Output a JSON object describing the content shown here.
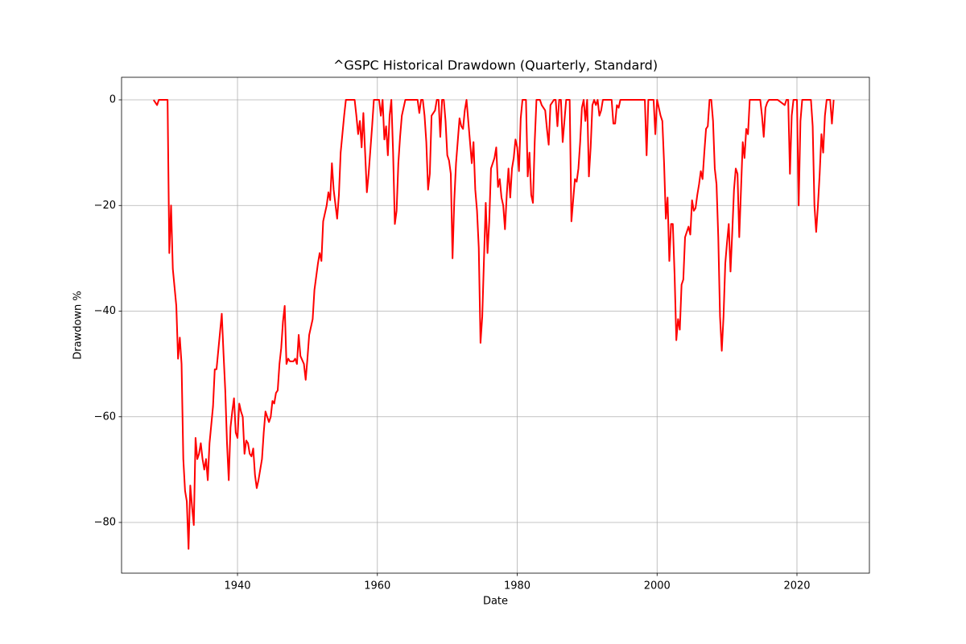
{
  "chart_data": {
    "type": "line",
    "title": "^GSPC Historical Drawdown (Quarterly, Standard)",
    "x_label": "Date",
    "y_label": "Drawdown %",
    "color": "#ff0000",
    "grid": true,
    "xlim": [
      1923.42,
      2030.36
    ],
    "ylim": [
      -89.6,
      4.27
    ],
    "xticks": [
      1940,
      1960,
      1980,
      2000,
      2020
    ],
    "yticks": [
      0,
      {
        "value": -20,
        "label": "−20"
      },
      {
        "value": -40,
        "label": "−40"
      },
      {
        "value": -60,
        "label": "−60"
      },
      {
        "value": -80,
        "label": "−80"
      }
    ],
    "x": [
      1928,
      1928.5,
      1928.75,
      1930,
      1930.25,
      1930.5,
      1930.75,
      1931.25,
      1931.5,
      1931.75,
      1932,
      1932.25,
      1932.5,
      1932.75,
      1933,
      1933.25,
      1933.5,
      1933.75,
      1934,
      1934.25,
      1934.5,
      1934.75,
      1935,
      1935.25,
      1935.5,
      1935.75,
      1936,
      1936.5,
      1936.75,
      1937,
      1937.5,
      1937.75,
      1938,
      1938.25,
      1938.5,
      1938.75,
      1939,
      1939.25,
      1939.5,
      1939.75,
      1940,
      1940.25,
      1940.5,
      1940.75,
      1941,
      1941.25,
      1941.5,
      1941.75,
      1942,
      1942.25,
      1942.5,
      1942.75,
      1943,
      1943.5,
      1943.75,
      1944,
      1944.5,
      1944.75,
      1945,
      1945.25,
      1945.5,
      1945.75,
      1946,
      1946.25,
      1946.5,
      1946.75,
      1947,
      1947.25,
      1947.5,
      1948,
      1948.25,
      1948.5,
      1948.75,
      1949,
      1949.5,
      1949.75,
      1950,
      1950.25,
      1950.75,
      1951,
      1951.5,
      1951.75,
      1952,
      1952.25,
      1952.75,
      1953,
      1953.25,
      1953.5,
      1953.75,
      1954.25,
      1954.5,
      1954.75,
      1955.25,
      1955.5,
      1956.75,
      1957,
      1957.25,
      1957.5,
      1957.75,
      1958,
      1958.25,
      1958.5,
      1958.75,
      1959.25,
      1959.5,
      1960.25,
      1960.5,
      1960.75,
      1961,
      1961.25,
      1961.5,
      1961.75,
      1962,
      1962.25,
      1962.5,
      1962.75,
      1963,
      1963.25,
      1963.5,
      1964,
      1965.75,
      1966,
      1966.25,
      1966.5,
      1966.75,
      1967,
      1967.25,
      1967.5,
      1967.75,
      1968.25,
      1968.5,
      1968.75,
      1969,
      1969.25,
      1969.5,
      1969.75,
      1970,
      1970.25,
      1970.5,
      1970.75,
      1971,
      1971.25,
      1971.75,
      1972,
      1972.25,
      1972.5,
      1972.75,
      1973.25,
      1973.5,
      1973.75,
      1974,
      1974.25,
      1974.5,
      1974.75,
      1975,
      1975.25,
      1975.5,
      1975.75,
      1976,
      1976.25,
      1976.75,
      1977,
      1977.25,
      1977.5,
      1977.75,
      1978,
      1978.25,
      1978.5,
      1978.75,
      1979,
      1979.25,
      1979.5,
      1979.75,
      1980,
      1980.25,
      1980.5,
      1980.75,
      1981.25,
      1981.5,
      1981.75,
      1982,
      1982.25,
      1982.5,
      1982.75,
      1983.25,
      1983.5,
      1984,
      1984.25,
      1984.5,
      1984.75,
      1985.25,
      1985.5,
      1985.75,
      1986,
      1986.25,
      1986.5,
      1986.75,
      1987,
      1987.5,
      1987.75,
      1988,
      1988.25,
      1988.5,
      1988.75,
      1989,
      1989.25,
      1989.5,
      1989.75,
      1990,
      1990.25,
      1990.5,
      1990.75,
      1991,
      1991.25,
      1991.5,
      1991.75,
      1992,
      1992.25,
      1993.5,
      1993.75,
      1994,
      1994.25,
      1994.5,
      1994.75,
      1998.25,
      1998.5,
      1998.75,
      1999.5,
      1999.75,
      2000,
      2000.5,
      2000.75,
      2001,
      2001.25,
      2001.5,
      2001.75,
      2002,
      2002.25,
      2002.5,
      2002.75,
      2003,
      2003.25,
      2003.5,
      2003.75,
      2004,
      2004.25,
      2004.5,
      2004.75,
      2005,
      2005.25,
      2005.5,
      2005.75,
      2006,
      2006.25,
      2006.5,
      2006.75,
      2007,
      2007.25,
      2007.5,
      2007.75,
      2008,
      2008.25,
      2008.5,
      2008.75,
      2009,
      2009.25,
      2009.5,
      2009.75,
      2010,
      2010.25,
      2010.5,
      2010.75,
      2011,
      2011.25,
      2011.5,
      2011.75,
      2012,
      2012.25,
      2012.5,
      2012.75,
      2013,
      2013.25,
      2014.75,
      2015,
      2015.25,
      2015.5,
      2015.75,
      2016,
      2017.25,
      2018.25,
      2018.5,
      2018.75,
      2019,
      2019.25,
      2019.5,
      2020,
      2020.25,
      2020.5,
      2020.75,
      2022,
      2022.25,
      2022.5,
      2022.75,
      2023,
      2023.25,
      2023.5,
      2023.75,
      2024,
      2024.25,
      2024.75,
      2025,
      2025.25
    ],
    "values": [
      0,
      -1,
      0,
      0,
      -29,
      -20,
      -32,
      -39,
      -49,
      -45,
      -50,
      -68,
      -74,
      -76,
      -85,
      -73,
      -77,
      -80.5,
      -64,
      -68,
      -67,
      -65,
      -68,
      -70,
      -68,
      -72,
      -65,
      -58,
      -51,
      -51,
      -44,
      -40.5,
      -48,
      -55,
      -65,
      -72,
      -62,
      -59,
      -56.5,
      -63,
      -64,
      -57.5,
      -59,
      -60,
      -67,
      -64.5,
      -65,
      -67,
      -67.5,
      -66,
      -71,
      -73.5,
      -72,
      -68,
      -63,
      -59,
      -61,
      -60,
      -57,
      -57.5,
      -55.5,
      -55,
      -50,
      -47,
      -42,
      -39,
      -50,
      -49,
      -49.5,
      -49.5,
      -49,
      -50,
      -44.5,
      -48.5,
      -50,
      -53,
      -49,
      -44.5,
      -41.5,
      -36,
      -31,
      -29,
      -30.5,
      -23,
      -20,
      -17.5,
      -19,
      -12,
      -17,
      -22.5,
      -18,
      -10,
      -3,
      0,
      0,
      -3,
      -6.5,
      -4,
      -9,
      -2.5,
      -10,
      -17.5,
      -14,
      -5,
      0,
      0,
      -3,
      0,
      -7.5,
      -5,
      -10.5,
      -3,
      0,
      -10,
      -23.5,
      -21,
      -12,
      -7,
      -3,
      0,
      0,
      -2.5,
      0,
      0,
      -3,
      -8,
      -17,
      -14,
      -3,
      -2,
      0,
      0,
      -7,
      0,
      0,
      -4,
      -10.5,
      -11.5,
      -14,
      -30,
      -19,
      -12,
      -3.5,
      -5,
      -5.5,
      -2,
      0,
      -8,
      -12,
      -8,
      -17,
      -21,
      -28,
      -46,
      -41,
      -30,
      -19.5,
      -29,
      -23,
      -13,
      -11,
      -9,
      -16.5,
      -15,
      -18.5,
      -20,
      -24.5,
      -18,
      -13,
      -18.5,
      -13,
      -11,
      -7.5,
      -9,
      -13.5,
      -3.5,
      0,
      0,
      -14.5,
      -10,
      -18,
      -19.5,
      -8,
      0,
      0,
      -1,
      -2,
      -5.5,
      -8.5,
      -1,
      0,
      0,
      -5,
      0,
      0,
      -8,
      -4,
      0,
      0,
      -23,
      -19,
      -15,
      -15.5,
      -13,
      -8,
      -1.5,
      0,
      -4,
      0,
      -14.5,
      -9,
      -1,
      0,
      -1,
      0,
      -3,
      -2,
      0,
      0,
      -4.5,
      -4.5,
      -1,
      -1.5,
      0,
      0,
      -10.5,
      0,
      0,
      -6.5,
      0,
      -3,
      -4,
      -12,
      -22.5,
      -18.5,
      -30.5,
      -23.5,
      -23.5,
      -33,
      -45.5,
      -41.5,
      -43.5,
      -35,
      -34,
      -26,
      -25,
      -24,
      -25.5,
      -19,
      -21,
      -20.5,
      -18,
      -16,
      -13.5,
      -15,
      -10,
      -5.5,
      -5,
      0,
      0,
      -4,
      -13,
      -16,
      -26,
      -41,
      -47.5,
      -41,
      -31,
      -27,
      -23.5,
      -32.5,
      -25,
      -17,
      -13,
      -14,
      -26,
      -17,
      -8,
      -11,
      -5.5,
      -6.5,
      0,
      0,
      -3,
      -7,
      -1.5,
      -0.5,
      0,
      0,
      -1,
      0,
      0,
      -14,
      -3,
      0,
      0,
      -20,
      -4,
      0,
      0,
      -5,
      -20,
      -25,
      -20,
      -14,
      -6.5,
      -10,
      -3,
      0,
      0,
      -4.5,
      0
    ]
  }
}
